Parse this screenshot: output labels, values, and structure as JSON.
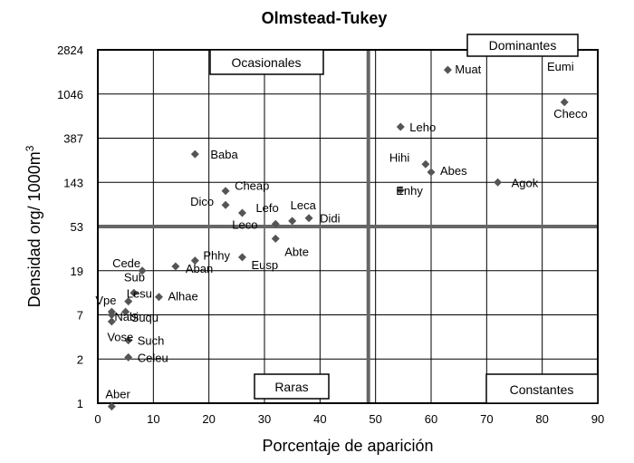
{
  "chart_data": {
    "type": "scatter",
    "title": "Olmstead-Tukey",
    "xlabel": "Porcentaje de aparición",
    "ylabel": "Densidad org/ 1000m",
    "ylabel_superscript": "3",
    "xlim": [
      0,
      90
    ],
    "x_ticks": [
      0,
      10,
      20,
      30,
      40,
      50,
      60,
      70,
      80,
      90
    ],
    "y_scale": "log",
    "ylim": [
      1,
      2824
    ],
    "y_ticks": [
      1,
      2,
      7,
      19,
      53,
      143,
      387,
      1046,
      2824
    ],
    "grid": true,
    "divider_x": 48.7,
    "divider_y": 53,
    "quadrant_labels": {
      "top_left": "Ocasionales",
      "top_right": "Dominantes",
      "bottom_left": "Raras",
      "bottom_right": "Constantes"
    },
    "marker_color": "#555555",
    "points": [
      {
        "label": "Muat",
        "x": 63,
        "y": 1800
      },
      {
        "label": "Eumi",
        "x": null,
        "y": null
      },
      {
        "label": "Checo",
        "x": 84,
        "y": 870
      },
      {
        "label": "Leho",
        "x": 54.5,
        "y": 500
      },
      {
        "label": "Hihi",
        "x": 59,
        "y": 215
      },
      {
        "label": "Abes",
        "x": 60,
        "y": 180
      },
      {
        "label": "Agok",
        "x": 72,
        "y": 143
      },
      {
        "label": "Enhy",
        "x": 54.5,
        "y": 120
      },
      {
        "label": "Baba",
        "x": 17.5,
        "y": 270
      },
      {
        "label": "Cheap",
        "x": 23,
        "y": 118
      },
      {
        "label": "Dico",
        "x": 23,
        "y": 86
      },
      {
        "label": "Lefo",
        "x": 26,
        "y": 72
      },
      {
        "label": "Leca",
        "x": 35,
        "y": 60
      },
      {
        "label": "Didi",
        "x": 38,
        "y": 64
      },
      {
        "label": "Leco",
        "x": 32,
        "y": 56
      },
      {
        "label": "Abte",
        "x": 32,
        "y": 40
      },
      {
        "label": "Eusp",
        "x": 26,
        "y": 26
      },
      {
        "label": "Phhy",
        "x": 17.5,
        "y": 24
      },
      {
        "label": "Aban",
        "x": 14,
        "y": 21
      },
      {
        "label": "Cede",
        "x": 8,
        "y": 19
      },
      {
        "label": "Alhae",
        "x": 11,
        "y": 10.5
      },
      {
        "label": "Sub",
        "x": 6.5,
        "y": 11.5
      },
      {
        "label": "Lesu",
        "x": 5.5,
        "y": 9.5
      },
      {
        "label": "Suqu",
        "x": 5,
        "y": 7.5
      },
      {
        "label": "Vpe",
        "x": 2.5,
        "y": 7.5
      },
      {
        "label": "Nabi",
        "x": 2.5,
        "y": 5.8
      },
      {
        "label": "Vose",
        "x": 2.5,
        "y": 7
      },
      {
        "label": "Such",
        "x": 5.5,
        "y": 3.4
      },
      {
        "label": "Celeu",
        "x": 5.5,
        "y": 2.1
      },
      {
        "label": "Aber",
        "x": 2.5,
        "y": 0.95
      }
    ]
  }
}
